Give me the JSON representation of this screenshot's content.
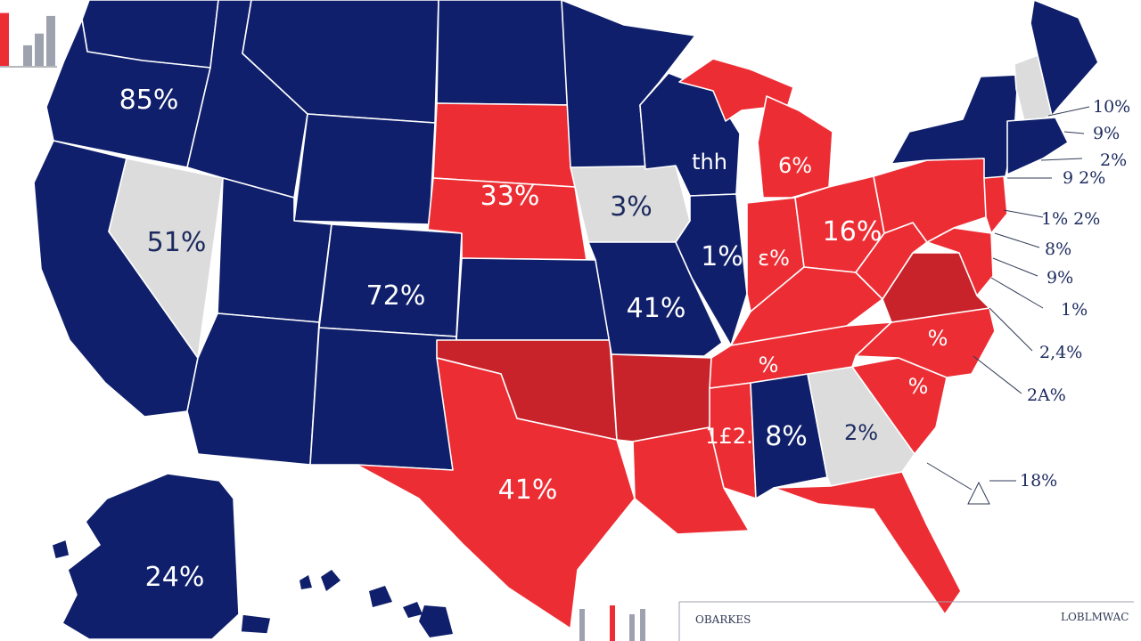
{
  "colors": {
    "blue": "#0f1f6b",
    "red": "#ed2d34",
    "dark_red": "#c8232a",
    "gray": "#dcdcdc",
    "border": "#ffffff"
  },
  "map_labels": {
    "wa_or": "85%",
    "nv": "51%",
    "co": "72%",
    "sd_ne": "33%",
    "ia": "3%",
    "wi": "thh",
    "il": "1%",
    "mi": "6%",
    "oh": "16%",
    "mo": "41%",
    "ms": "1£2.",
    "al": "8%",
    "ga": "2%",
    "tx": "41%",
    "ak": "24%",
    "in": "ɛ%",
    "tn": "%",
    "nc": "%",
    "sc": "%"
  },
  "callouts": [
    "10%",
    "9%",
    "2%",
    "9 2%",
    "1% 2%",
    "8%",
    "9%",
    "1%",
    "2,4%",
    "2A%",
    "18%"
  ],
  "footer": {
    "left_text": "OBARKES",
    "right_text": "LOBLMWAC"
  },
  "inset_chart": {
    "values": [
      0.9,
      0.35,
      0.55,
      0.85
    ]
  }
}
